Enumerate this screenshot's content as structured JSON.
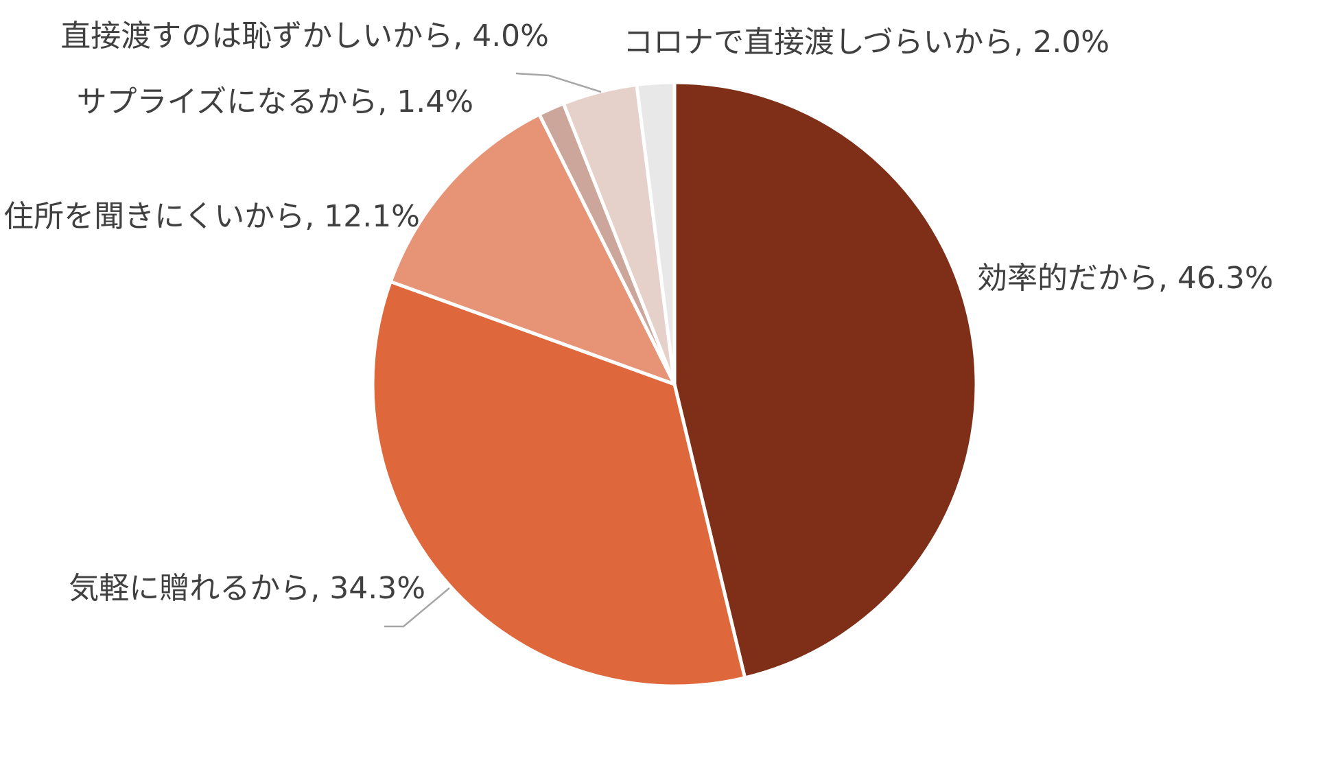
{
  "chart_data": {
    "type": "pie",
    "title": "",
    "start_angle_deg": 0,
    "direction": "clockwise",
    "slices": [
      {
        "label": "効率的だから",
        "value": 46.3,
        "value_text": "46.3%",
        "color": "#7f2f18"
      },
      {
        "label": "気軽に贈れるから",
        "value": 34.3,
        "value_text": "34.3%",
        "color": "#df673c"
      },
      {
        "label": "住所を聞きにくいから",
        "value": 12.1,
        "value_text": "12.1%",
        "color": "#e69376"
      },
      {
        "label": "サプライズになるから",
        "value": 1.4,
        "value_text": "1.4%",
        "color": "#cca69b"
      },
      {
        "label": "直接渡すのは恥ずかしいから",
        "value": 4.0,
        "value_text": "4.0%",
        "color": "#e6d0ca"
      },
      {
        "label": "コロナで直接渡しづらいから",
        "value": 2.0,
        "value_text": "2.0%",
        "color": "#e8e8e8"
      }
    ],
    "label_separator": ", ",
    "legend": "none",
    "data_labels": "outside"
  }
}
